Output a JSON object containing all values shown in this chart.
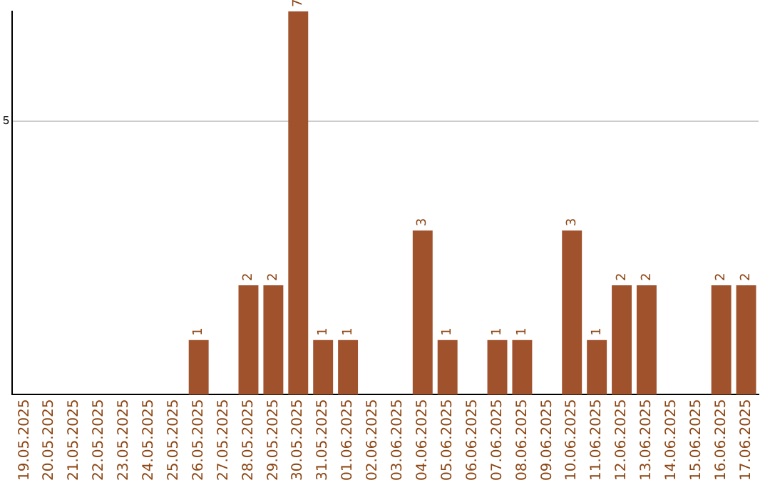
{
  "chart_data": {
    "type": "bar",
    "categories": [
      "19.05.2025",
      "20.05.2025",
      "21.05.2025",
      "22.05.2025",
      "23.05.2025",
      "24.05.2025",
      "25.05.2025",
      "26.05.2025",
      "27.05.2025",
      "28.05.2025",
      "29.05.2025",
      "30.05.2025",
      "31.05.2025",
      "01.06.2025",
      "02.06.2025",
      "03.06.2025",
      "04.06.2025",
      "05.06.2025",
      "06.06.2025",
      "07.06.2025",
      "08.06.2025",
      "09.06.2025",
      "10.06.2025",
      "11.06.2025",
      "12.06.2025",
      "13.06.2025",
      "14.06.2025",
      "15.06.2025",
      "16.06.2025",
      "17.06.2025"
    ],
    "values": [
      0,
      0,
      0,
      0,
      0,
      0,
      0,
      1,
      0,
      2,
      2,
      7,
      1,
      1,
      0,
      0,
      3,
      1,
      0,
      1,
      1,
      0,
      3,
      1,
      2,
      2,
      0,
      0,
      2,
      2
    ],
    "value_labels": [
      null,
      null,
      null,
      null,
      null,
      null,
      null,
      "1",
      null,
      "2",
      "2",
      "7",
      "1",
      "1",
      null,
      null,
      "3",
      "1",
      null,
      "1",
      "1",
      null,
      "3",
      "1",
      "2",
      "2",
      null,
      null,
      "2",
      "2"
    ],
    "color": "#a0522d",
    "ylim": [
      0,
      7
    ],
    "yticks": [
      5
    ],
    "grid": "y",
    "legend": false
  }
}
